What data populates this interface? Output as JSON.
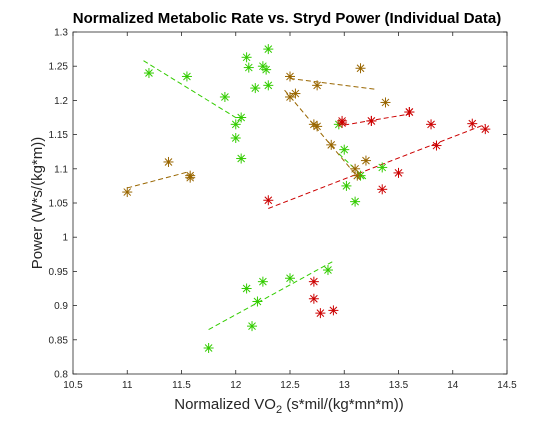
{
  "chart_data": {
    "type": "scatter",
    "title": "Normalized Metabolic Rate vs. Stryd Power (Individual Data)",
    "xlabel": {
      "prefix": "Normalized VO",
      "sub": "2",
      "suffix": " (s*mil/(kg*mn*m))"
    },
    "ylabel": "Power (W*s/(kg*m))",
    "xlim": [
      10.5,
      14.5
    ],
    "ylim": [
      0.8,
      1.3
    ],
    "x_ticks": [
      "10.5",
      "11",
      "11.5",
      "12",
      "12.5",
      "13",
      "13.5",
      "14",
      "14.5"
    ],
    "y_ticks": [
      "0.8",
      "0.85",
      "0.9",
      "0.95",
      "1",
      "1.05",
      "1.1",
      "1.15",
      "1.2",
      "1.25",
      "1.3"
    ],
    "grid": false,
    "marker": "asterisk",
    "series": [
      {
        "color": "#33cc00",
        "points": [
          [
            11.2,
            1.24
          ],
          [
            11.55,
            1.235
          ],
          [
            11.9,
            1.205
          ],
          [
            12.0,
            1.165
          ],
          [
            12.05,
            1.175
          ],
          [
            12.0,
            1.145
          ],
          [
            12.05,
            1.115
          ]
        ],
        "fit": [
          [
            11.15,
            1.258
          ],
          [
            12.05,
            1.17
          ]
        ]
      },
      {
        "color": "#33cc00",
        "points": [
          [
            11.75,
            0.838
          ],
          [
            12.1,
            0.925
          ],
          [
            12.15,
            0.87
          ],
          [
            12.2,
            0.906
          ],
          [
            12.25,
            0.935
          ],
          [
            12.5,
            0.94
          ],
          [
            12.85,
            0.952
          ]
        ],
        "fit": [
          [
            11.75,
            0.865
          ],
          [
            12.9,
            0.965
          ]
        ]
      },
      {
        "color": "#33cc00",
        "points": [
          [
            12.1,
            1.263
          ],
          [
            12.12,
            1.248
          ],
          [
            12.18,
            1.218
          ],
          [
            12.25,
            1.25
          ],
          [
            12.28,
            1.245
          ],
          [
            12.3,
            1.275
          ],
          [
            12.3,
            1.222
          ]
        ],
        "fit": []
      },
      {
        "color": "#33cc00",
        "points": [
          [
            12.95,
            1.165
          ],
          [
            13.0,
            1.128
          ],
          [
            13.02,
            1.075
          ],
          [
            13.1,
            1.052
          ],
          [
            13.15,
            1.09
          ],
          [
            13.35,
            1.102
          ]
        ],
        "fit": [
          [
            12.95,
            1.122
          ],
          [
            13.2,
            1.085
          ]
        ]
      },
      {
        "color": "#996600",
        "points": [
          [
            11.0,
            1.066
          ],
          [
            11.38,
            1.11
          ],
          [
            11.58,
            1.09
          ],
          [
            11.58,
            1.087
          ]
        ],
        "fit": [
          [
            11.0,
            1.072
          ],
          [
            11.55,
            1.095
          ]
        ]
      },
      {
        "color": "#996600",
        "points": [
          [
            12.5,
            1.235
          ],
          [
            12.5,
            1.205
          ],
          [
            12.55,
            1.21
          ],
          [
            12.75,
            1.222
          ],
          [
            13.15,
            1.247
          ],
          [
            13.38,
            1.197
          ]
        ],
        "fit": [
          [
            12.5,
            1.232
          ],
          [
            13.3,
            1.216
          ]
        ]
      },
      {
        "color": "#996600",
        "points": [
          [
            12.72,
            1.165
          ],
          [
            12.75,
            1.162
          ],
          [
            12.88,
            1.135
          ],
          [
            13.1,
            1.1
          ],
          [
            13.12,
            1.09
          ],
          [
            13.2,
            1.112
          ]
        ],
        "fit": [
          [
            12.45,
            1.215
          ],
          [
            13.15,
            1.083
          ]
        ]
      },
      {
        "color": "#cc0000",
        "points": [
          [
            12.3,
            1.054
          ],
          [
            12.98,
            1.17
          ],
          [
            13.25,
            1.17
          ],
          [
            13.35,
            1.07
          ],
          [
            13.5,
            1.094
          ],
          [
            13.6,
            1.183
          ],
          [
            13.8,
            1.165
          ],
          [
            13.85,
            1.134
          ],
          [
            14.18,
            1.166
          ],
          [
            14.3,
            1.158
          ]
        ],
        "fit": [
          [
            12.3,
            1.042
          ],
          [
            14.3,
            1.165
          ]
        ]
      },
      {
        "color": "#cc0000",
        "points": [
          [
            12.72,
            0.91
          ],
          [
            12.72,
            0.935
          ],
          [
            12.78,
            0.889
          ],
          [
            12.9,
            0.893
          ]
        ],
        "fit": []
      },
      {
        "color": "#cc0000",
        "points": [
          [
            12.98,
            1.167
          ],
          [
            13.25,
            1.17
          ],
          [
            13.6,
            1.183
          ]
        ],
        "fit": [
          [
            13.0,
            1.164
          ],
          [
            13.6,
            1.18
          ]
        ]
      }
    ]
  }
}
